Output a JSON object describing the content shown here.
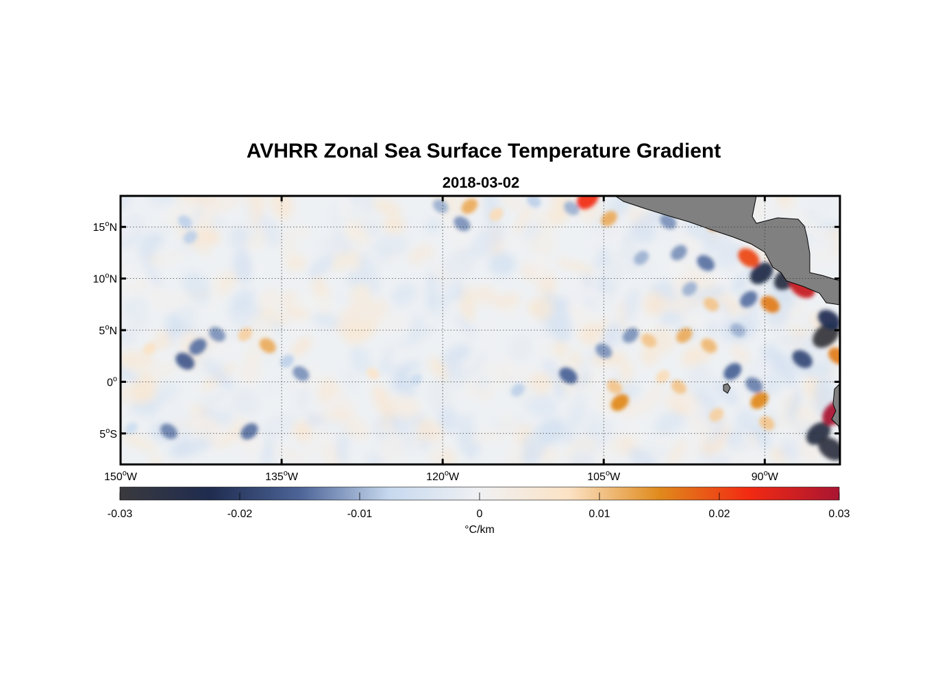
{
  "title": "AVHRR Zonal Sea Surface Temperature Gradient",
  "subtitle": "2018-03-02",
  "map": {
    "lon_range": [
      -150,
      -83
    ],
    "lat_range": [
      -8,
      18
    ],
    "lon_ticks": [
      {
        "value": -150,
        "deg": "150",
        "hemi": "W"
      },
      {
        "value": -135,
        "deg": "135",
        "hemi": "W"
      },
      {
        "value": -120,
        "deg": "120",
        "hemi": "W"
      },
      {
        "value": -105,
        "deg": "105",
        "hemi": "W"
      },
      {
        "value": -90,
        "deg": "90",
        "hemi": "W"
      }
    ],
    "lat_ticks": [
      {
        "value": 15,
        "deg": "15",
        "hemi": "N"
      },
      {
        "value": 10,
        "deg": "10",
        "hemi": "N"
      },
      {
        "value": 5,
        "deg": "5",
        "hemi": "N"
      },
      {
        "value": 0,
        "deg": "0",
        "hemi": ""
      },
      {
        "value": -5,
        "deg": "5",
        "hemi": "S"
      }
    ],
    "degree_symbol": "o",
    "gridlines": "dotted",
    "land_color": "#808080",
    "ocean_background": "#eef1f4"
  },
  "colorbar": {
    "range": [
      -0.03,
      0.03
    ],
    "ticks": [
      "-0.03",
      "-0.02",
      "-0.01",
      "0",
      "0.01",
      "0.02",
      "0.03"
    ],
    "tick_values": [
      -0.03,
      -0.02,
      -0.01,
      0,
      0.01,
      0.02,
      0.03
    ],
    "label": "°C/km",
    "colors": [
      "#3a3a3e",
      "#1f2c4f",
      "#4c6497",
      "#c7d9ef",
      "#f0f1f3",
      "#fbe2c4",
      "#e08a1c",
      "#f22a12",
      "#a91532"
    ]
  },
  "features": [
    {
      "lon": -147.3,
      "lat": 3.2,
      "v": 0.007
    },
    {
      "lon": -144.0,
      "lat": 2.0,
      "v": -0.016
    },
    {
      "lon": -142.8,
      "lat": 3.4,
      "v": -0.014
    },
    {
      "lon": -141.0,
      "lat": 4.6,
      "v": -0.012
    },
    {
      "lon": -138.4,
      "lat": 4.6,
      "v": 0.009
    },
    {
      "lon": -136.3,
      "lat": 3.5,
      "v": 0.012
    },
    {
      "lon": -134.5,
      "lat": 2.0,
      "v": -0.008
    },
    {
      "lon": -133.2,
      "lat": 0.8,
      "v": -0.012
    },
    {
      "lon": -149.0,
      "lat": -4.5,
      "v": -0.006
    },
    {
      "lon": -145.5,
      "lat": -4.8,
      "v": -0.013
    },
    {
      "lon": -138.0,
      "lat": -4.8,
      "v": -0.014
    },
    {
      "lon": -144.0,
      "lat": 15.5,
      "v": -0.008
    },
    {
      "lon": -143.5,
      "lat": 14.0,
      "v": -0.008
    },
    {
      "lon": -126.5,
      "lat": 0.8,
      "v": 0.006
    },
    {
      "lon": -122.5,
      "lat": 0.2,
      "v": -0.006
    },
    {
      "lon": -120.2,
      "lat": 17.0,
      "v": -0.01
    },
    {
      "lon": -117.5,
      "lat": 17.0,
      "v": 0.012
    },
    {
      "lon": -118.2,
      "lat": 15.3,
      "v": -0.012
    },
    {
      "lon": -115.0,
      "lat": 16.2,
      "v": 0.008
    },
    {
      "lon": -111.5,
      "lat": 17.5,
      "v": -0.008
    },
    {
      "lon": -106.5,
      "lat": 17.7,
      "v": 0.022
    },
    {
      "lon": -108.0,
      "lat": 16.8,
      "v": -0.01
    },
    {
      "lon": -104.5,
      "lat": 15.8,
      "v": 0.012
    },
    {
      "lon": -108.3,
      "lat": 0.6,
      "v": -0.015
    },
    {
      "lon": -113.0,
      "lat": -0.8,
      "v": -0.008
    },
    {
      "lon": -105.0,
      "lat": 3.0,
      "v": -0.012
    },
    {
      "lon": -103.5,
      "lat": -2.0,
      "v": 0.015
    },
    {
      "lon": -104.0,
      "lat": -0.5,
      "v": 0.01
    },
    {
      "lon": -102.5,
      "lat": 4.5,
      "v": -0.012
    },
    {
      "lon": -100.8,
      "lat": 4.0,
      "v": 0.01
    },
    {
      "lon": -101.5,
      "lat": 12.0,
      "v": -0.01
    },
    {
      "lon": -99.0,
      "lat": 15.5,
      "v": -0.012
    },
    {
      "lon": -98.0,
      "lat": 12.5,
      "v": -0.012
    },
    {
      "lon": -95.5,
      "lat": 11.5,
      "v": -0.014
    },
    {
      "lon": -97.0,
      "lat": 9.0,
      "v": -0.01
    },
    {
      "lon": -95.0,
      "lat": 7.5,
      "v": 0.01
    },
    {
      "lon": -97.5,
      "lat": 4.5,
      "v": 0.012
    },
    {
      "lon": -95.2,
      "lat": 3.5,
      "v": 0.011
    },
    {
      "lon": -99.5,
      "lat": 0.5,
      "v": 0.008
    },
    {
      "lon": -98.0,
      "lat": -0.5,
      "v": 0.01
    },
    {
      "lon": -94.5,
      "lat": 15.5,
      "v": 0.016
    },
    {
      "lon": -91.5,
      "lat": 12.0,
      "v": 0.02
    },
    {
      "lon": -90.3,
      "lat": 10.5,
      "v": -0.024
    },
    {
      "lon": -88.5,
      "lat": 11.8,
      "v": 0.016
    },
    {
      "lon": -88.0,
      "lat": 10.0,
      "v": -0.026
    },
    {
      "lon": -86.5,
      "lat": 9.2,
      "v": 0.027
    },
    {
      "lon": -87.2,
      "lat": 12.3,
      "v": -0.01
    },
    {
      "lon": -89.5,
      "lat": 7.5,
      "v": 0.016
    },
    {
      "lon": -91.5,
      "lat": 8.0,
      "v": -0.014
    },
    {
      "lon": -92.5,
      "lat": 5.0,
      "v": -0.01
    },
    {
      "lon": -93.0,
      "lat": 1.0,
      "v": -0.015
    },
    {
      "lon": -91.0,
      "lat": -0.3,
      "v": -0.013
    },
    {
      "lon": -90.5,
      "lat": -1.8,
      "v": 0.015
    },
    {
      "lon": -89.8,
      "lat": -4.0,
      "v": 0.01
    },
    {
      "lon": -94.5,
      "lat": -3.2,
      "v": 0.009
    },
    {
      "lon": -86.5,
      "lat": 2.2,
      "v": -0.018
    },
    {
      "lon": -84.3,
      "lat": 4.5,
      "v": -0.03
    },
    {
      "lon": -84.0,
      "lat": 6.0,
      "v": -0.022
    },
    {
      "lon": -85.0,
      "lat": -5.0,
      "v": -0.026
    },
    {
      "lon": -83.8,
      "lat": -6.5,
      "v": -0.028
    },
    {
      "lon": -83.4,
      "lat": -3.0,
      "v": 0.03
    },
    {
      "lon": -83.2,
      "lat": 2.5,
      "v": 0.016
    }
  ]
}
